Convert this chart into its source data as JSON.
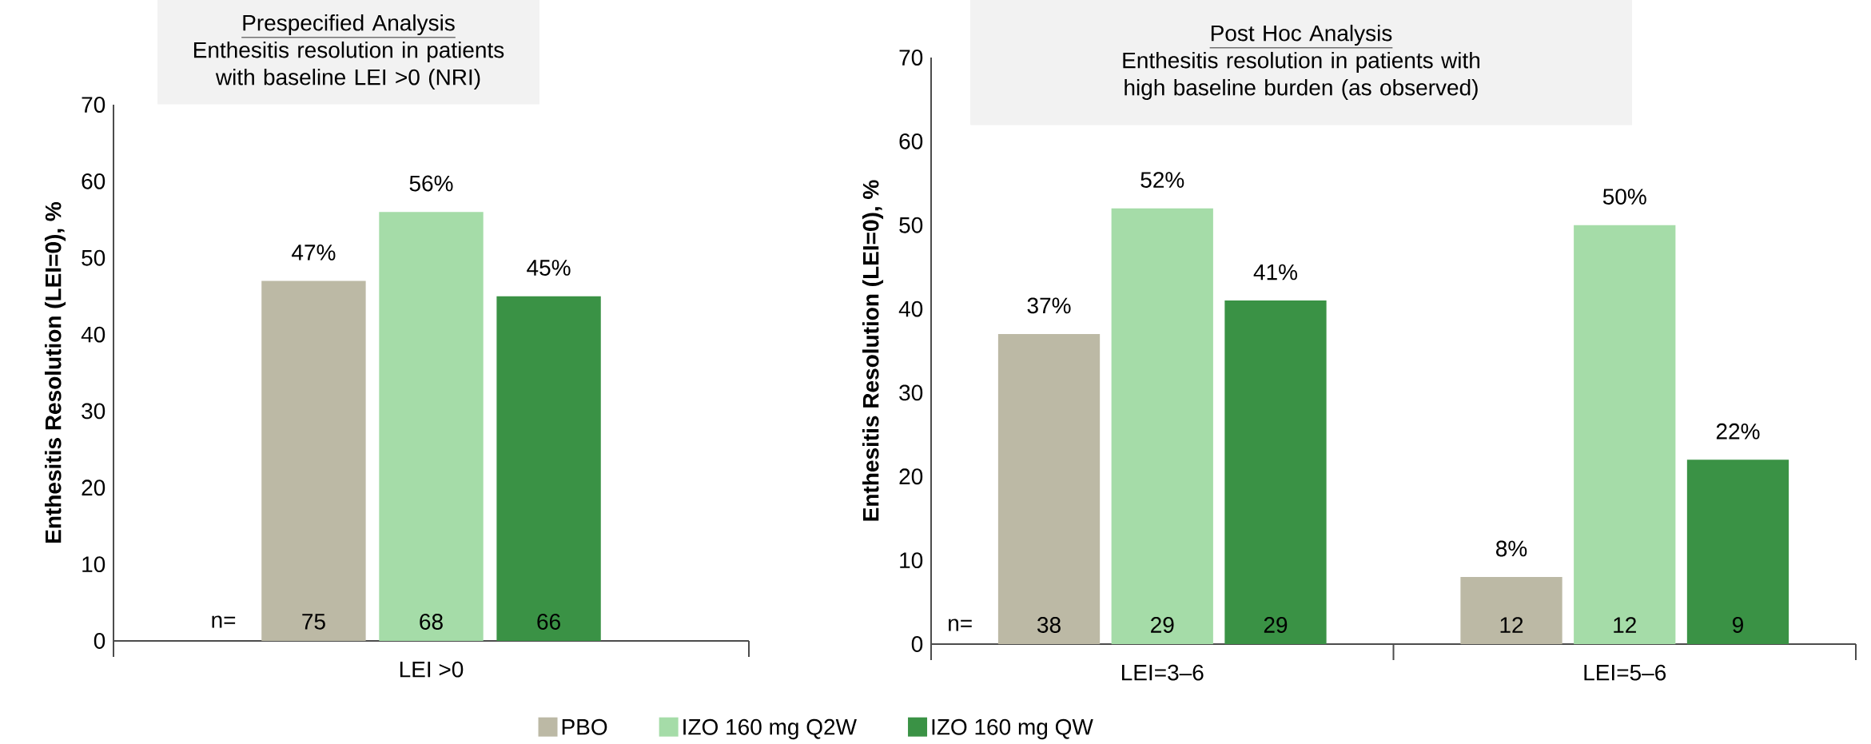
{
  "chart_data": [
    {
      "type": "bar",
      "title": "Prespecified Analysis",
      "subtitle": "Enthesitis resolution in patients with baseline LEI >0 (NRI)",
      "ylabel": "Enthesitis Resolution (LEI=0), %",
      "categories": [
        "LEI >0"
      ],
      "series": [
        {
          "color": "#bcb9a5",
          "values": [
            47
          ],
          "value_labels": [
            "47%"
          ]
        },
        {
          "color": "#a5dca8",
          "values": [
            56
          ],
          "value_labels": [
            "56%"
          ]
        },
        {
          "color": "#3a9245",
          "values": [
            45
          ],
          "value_labels": [
            "45%"
          ]
        }
      ],
      "ylim": [
        0,
        70
      ],
      "yticks": [
        0,
        10,
        20,
        30,
        40,
        50,
        60,
        70
      ],
      "annotations": [
        "n=",
        "75",
        "68",
        "66"
      ]
    },
    {
      "type": "bar",
      "title": "Post Hoc Analysis",
      "subtitle": "Enthesitis resolution in patients with high baseline burden (as observed)",
      "ylabel": "Enthesitis Resolution (LEI=0), %",
      "categories": [
        "LEI=3–6",
        "LEI=5–6"
      ],
      "series": [
        {
          "name": "PBO",
          "color": "#bcb9a5",
          "values": [
            37,
            8
          ],
          "value_labels": [
            "37%",
            "8%"
          ]
        },
        {
          "name": "IZO 160 mg Q2W",
          "color": "#a5dca8",
          "values": [
            52,
            50
          ],
          "value_labels": [
            "52%",
            "50%"
          ]
        },
        {
          "name": "IZO 160 mg QW",
          "color": "#3a9245",
          "values": [
            41,
            22
          ],
          "value_labels": [
            "41%",
            "22%"
          ]
        }
      ],
      "ylim": [
        0,
        70
      ],
      "yticks": [
        0,
        10,
        20,
        30,
        40,
        50,
        60,
        70
      ],
      "annotations": [
        "n=",
        "38",
        "29",
        "29",
        "12",
        "12",
        "9"
      ],
      "legend": "bottom"
    }
  ]
}
